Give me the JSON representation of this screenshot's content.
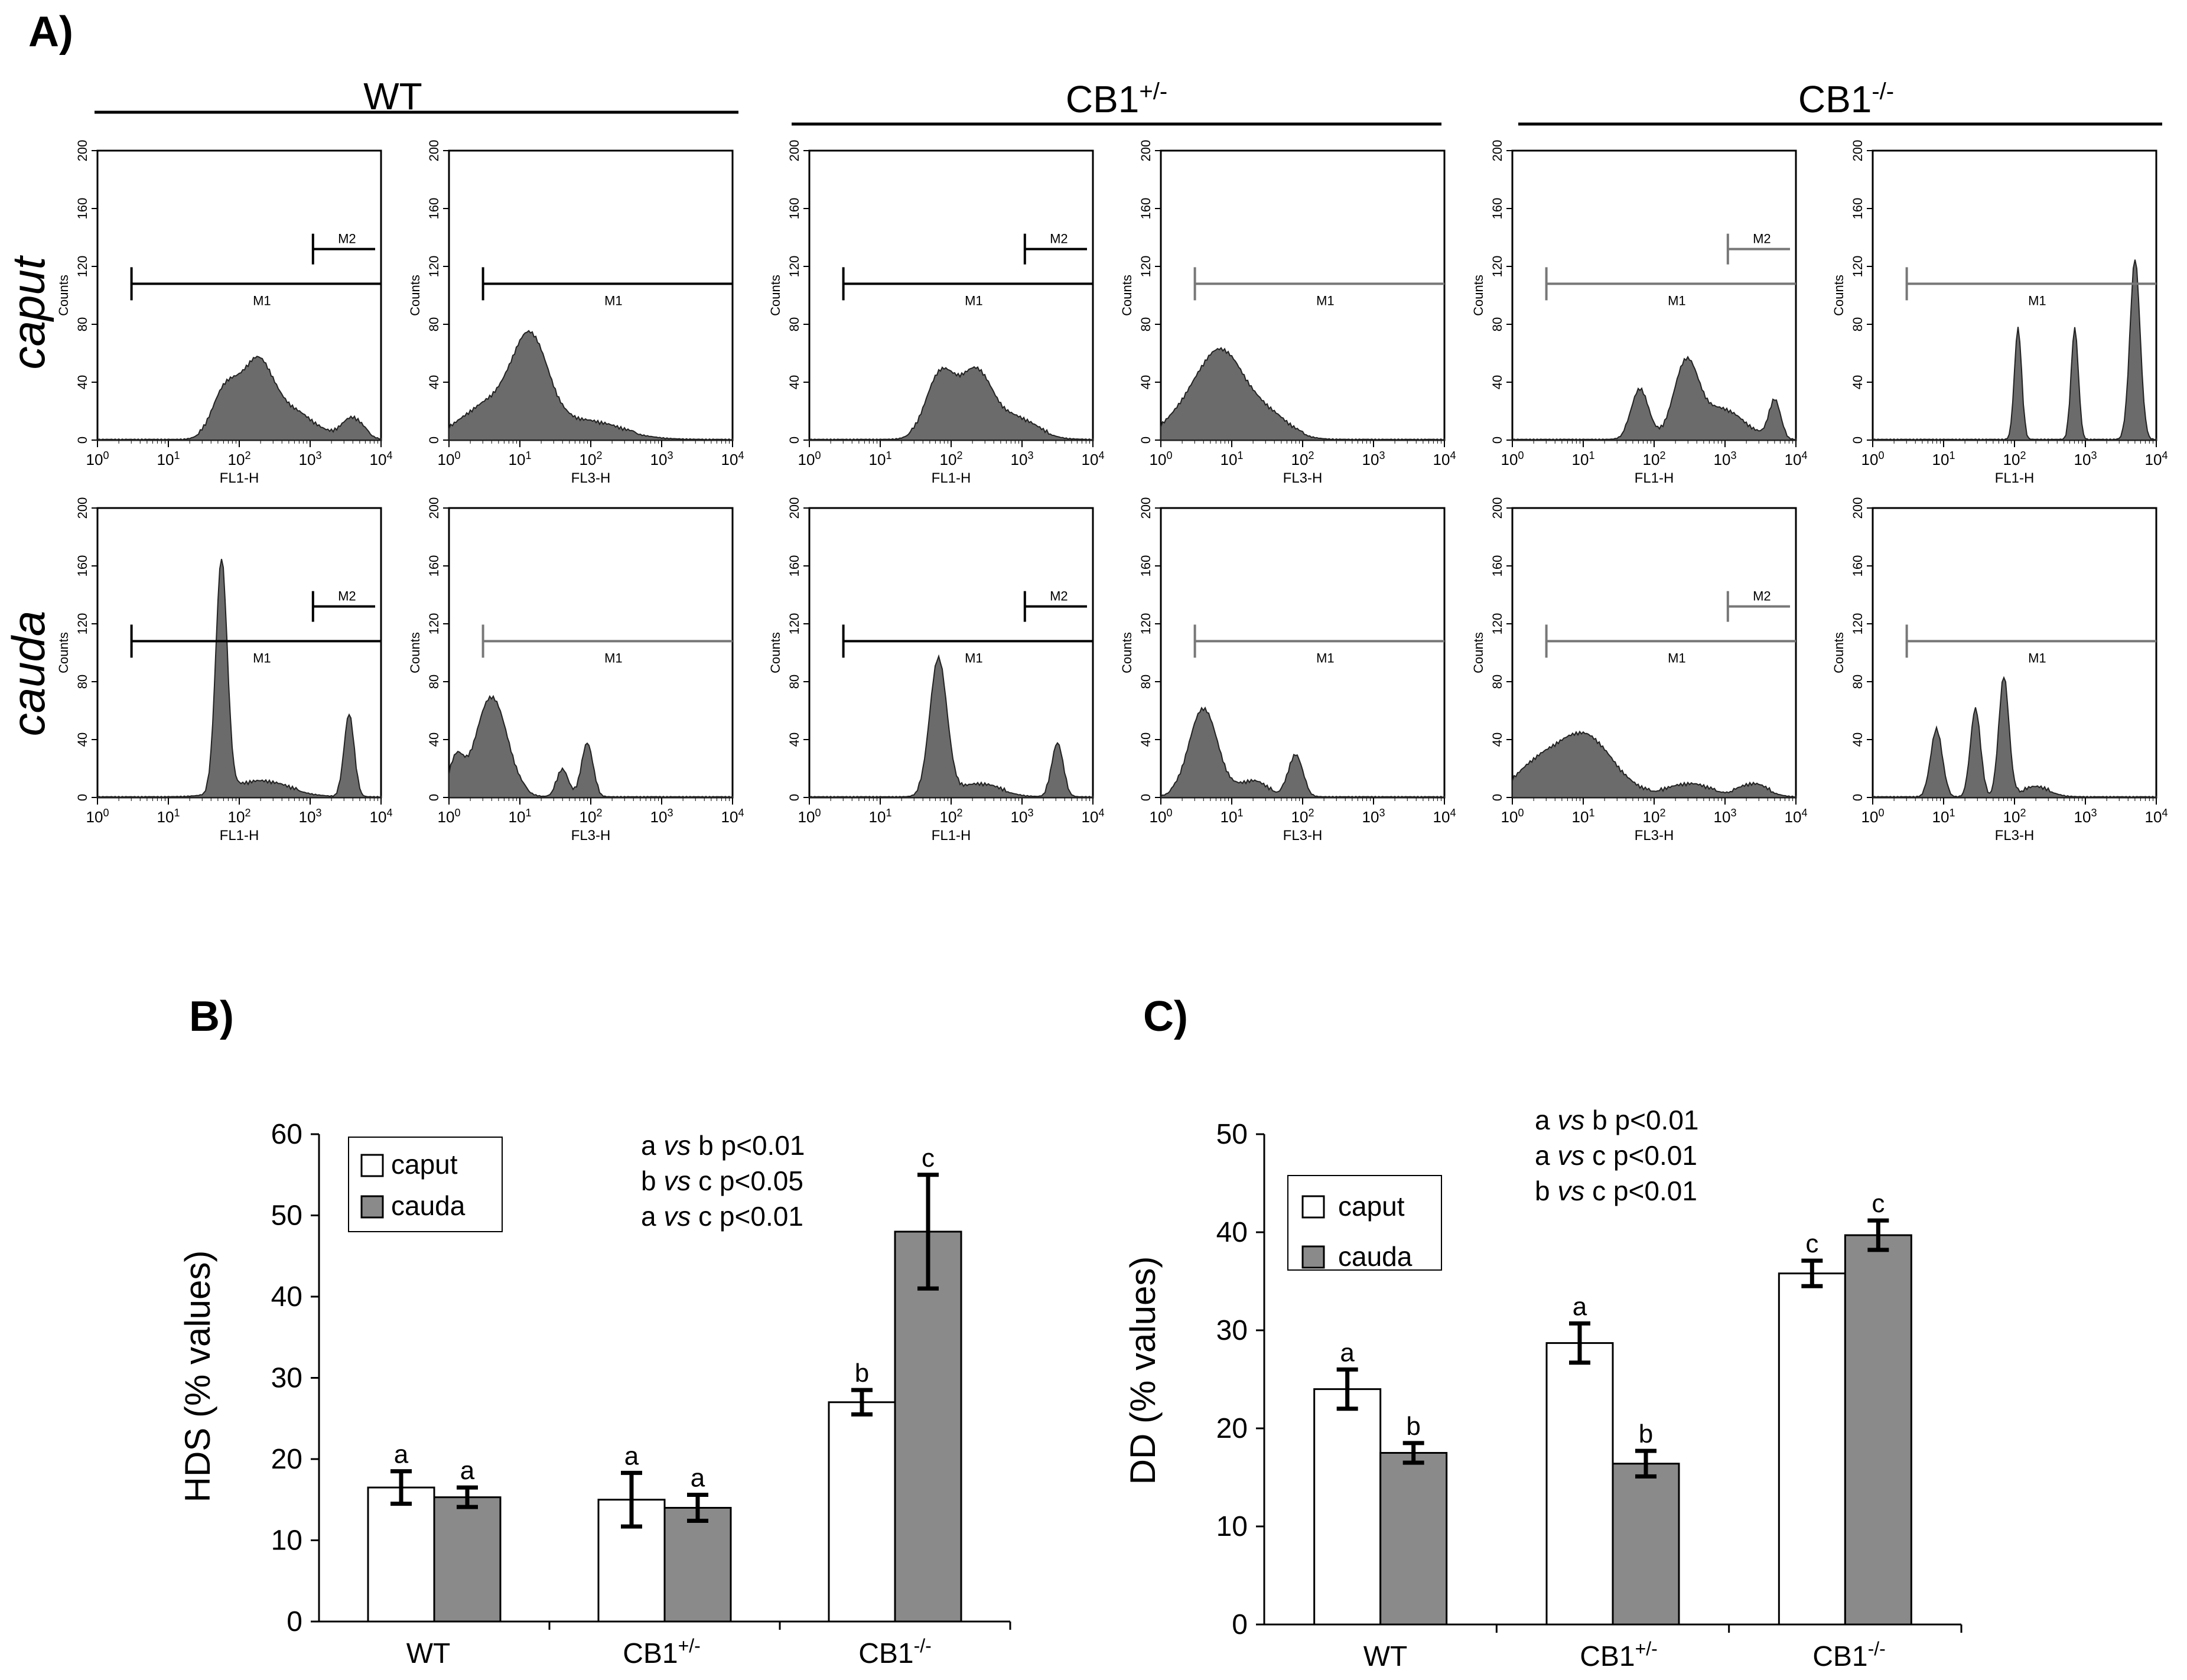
{
  "panel_labels": {
    "a": "A)",
    "b": "B)",
    "c": "C)"
  },
  "colors": {
    "white_bar": "#ffffff",
    "gray_bar": "#8a8a8a",
    "histogram_fill": "#6b6b6b",
    "stroke": "#000000"
  },
  "panel_a": {
    "groups": [
      "WT",
      "CB1",
      "CB1"
    ],
    "group_superscripts": [
      "",
      "+/-",
      "-/-"
    ],
    "row_labels": [
      "caput",
      "cauda"
    ],
    "y_axis_label": "Counts",
    "y_ticks": [
      "0",
      "40",
      "80",
      "120",
      "160",
      "200"
    ],
    "x_tick_exponents": [
      "0",
      "1",
      "2",
      "3",
      "4"
    ],
    "x_tick_base": "10",
    "histograms": [
      {
        "row": 0,
        "col": 0,
        "xlabel": "FL1-H",
        "ylabel": "Counts",
        "markers": [
          "M1",
          "M2"
        ],
        "marker_color": "black",
        "peaks": [
          [
            1.8,
            0.16,
            0.18
          ],
          [
            2.25,
            0.25,
            0.22
          ],
          [
            2.75,
            0.09,
            0.3
          ],
          [
            3.6,
            0.07,
            0.15
          ]
        ]
      },
      {
        "row": 0,
        "col": 1,
        "xlabel": "FL3-H",
        "ylabel": "Counts",
        "markers": [
          "M1"
        ],
        "marker_color": "black",
        "peaks": [
          [
            0.6,
            0.12,
            0.4
          ],
          [
            1.15,
            0.3,
            0.25
          ],
          [
            1.9,
            0.06,
            0.5
          ]
        ]
      },
      {
        "row": 0,
        "col": 2,
        "xlabel": "FL1-H",
        "ylabel": "Counts",
        "markers": [
          "M1",
          "M2"
        ],
        "marker_color": "black",
        "peaks": [
          [
            1.85,
            0.22,
            0.2
          ],
          [
            2.35,
            0.22,
            0.22
          ],
          [
            2.9,
            0.07,
            0.3
          ]
        ]
      },
      {
        "row": 0,
        "col": 3,
        "xlabel": "FL3-H",
        "ylabel": "Counts",
        "markers": [
          "M1"
        ],
        "marker_color": "gray",
        "peaks": [
          [
            0.5,
            0.12,
            0.35
          ],
          [
            0.9,
            0.23,
            0.3
          ],
          [
            1.5,
            0.08,
            0.3
          ]
        ]
      },
      {
        "row": 0,
        "col": 4,
        "xlabel": "FL1-H",
        "ylabel": "Counts",
        "markers": [
          "M1",
          "M2"
        ],
        "marker_color": "gray",
        "peaks": [
          [
            1.8,
            0.17,
            0.12
          ],
          [
            2.45,
            0.25,
            0.17
          ],
          [
            2.95,
            0.1,
            0.3
          ],
          [
            3.7,
            0.13,
            0.08
          ]
        ]
      },
      {
        "row": 0,
        "col": 5,
        "xlabel": "FL1-H",
        "ylabel": "Counts",
        "markers": [
          "M1"
        ],
        "marker_color": "gray",
        "peaks": [
          [
            2.05,
            0.38,
            0.05
          ],
          [
            2.85,
            0.38,
            0.05
          ],
          [
            3.7,
            0.62,
            0.07
          ]
        ]
      },
      {
        "row": 1,
        "col": 0,
        "xlabel": "FL1-H",
        "ylabel": "Counts",
        "markers": [
          "M1",
          "M2"
        ],
        "marker_color": "black",
        "peaks": [
          [
            1.75,
            0.8,
            0.08
          ],
          [
            2.3,
            0.05,
            0.4
          ],
          [
            3.55,
            0.28,
            0.07
          ]
        ]
      },
      {
        "row": 1,
        "col": 1,
        "xlabel": "FL3-H",
        "ylabel": "Counts",
        "markers": [
          "M1"
        ],
        "marker_color": "gray",
        "peaks": [
          [
            0.1,
            0.12,
            0.1
          ],
          [
            0.6,
            0.34,
            0.22
          ],
          [
            1.6,
            0.09,
            0.08
          ],
          [
            1.95,
            0.18,
            0.08
          ]
        ]
      },
      {
        "row": 1,
        "col": 2,
        "xlabel": "FL1-H",
        "ylabel": "Counts",
        "markers": [
          "M1",
          "M2"
        ],
        "marker_color": "black",
        "peaks": [
          [
            1.82,
            0.47,
            0.12
          ],
          [
            2.4,
            0.04,
            0.3
          ],
          [
            3.5,
            0.18,
            0.08
          ]
        ]
      },
      {
        "row": 1,
        "col": 3,
        "xlabel": "FL3-H",
        "ylabel": "Counts",
        "markers": [
          "M1"
        ],
        "marker_color": "gray",
        "peaks": [
          [
            0.6,
            0.3,
            0.2
          ],
          [
            1.3,
            0.05,
            0.2
          ],
          [
            1.9,
            0.14,
            0.1
          ]
        ]
      },
      {
        "row": 1,
        "col": 4,
        "xlabel": "FL3-H",
        "ylabel": "Counts",
        "markers": [
          "M1",
          "M2"
        ],
        "marker_color": "gray",
        "peaks": [
          [
            0.3,
            0.08,
            0.3
          ],
          [
            1.0,
            0.21,
            0.4
          ],
          [
            2.5,
            0.04,
            0.3
          ],
          [
            3.4,
            0.04,
            0.2
          ]
        ]
      },
      {
        "row": 1,
        "col": 5,
        "xlabel": "FL3-H",
        "ylabel": "Counts",
        "markers": [
          "M1"
        ],
        "marker_color": "gray",
        "peaks": [
          [
            0.9,
            0.23,
            0.08
          ],
          [
            1.45,
            0.3,
            0.07
          ],
          [
            1.85,
            0.41,
            0.07
          ],
          [
            2.3,
            0.03,
            0.2
          ]
        ]
      }
    ]
  },
  "chart_data": [
    {
      "type": "bar",
      "panel": "B)",
      "categories": [
        "WT",
        "CB1",
        "CB1"
      ],
      "category_superscripts": [
        "",
        "+/-",
        "-/-"
      ],
      "ylabel": "HDS (% values)",
      "ylim": [
        0,
        60
      ],
      "yticks": [
        0,
        10,
        20,
        30,
        40,
        50,
        60
      ],
      "legend_position": "top-left",
      "series": [
        {
          "name": "caput",
          "color": "#ffffff",
          "values": [
            16.5,
            15,
            27
          ],
          "errors": [
            2,
            3.3,
            1.5
          ],
          "letters": [
            "a",
            "a",
            "b"
          ]
        },
        {
          "name": "cauda",
          "color": "#8a8a8a",
          "values": [
            15.3,
            14,
            48
          ],
          "errors": [
            1.2,
            1.6,
            7
          ],
          "letters": [
            "a",
            "a",
            "c"
          ]
        }
      ],
      "annotations": [
        {
          "pre": "a ",
          "vs": "vs",
          "post": " b p<0.01"
        },
        {
          "pre": "b ",
          "vs": "vs",
          "post": " c p<0.05"
        },
        {
          "pre": "a ",
          "vs": "vs",
          "post": " c p<0.01"
        }
      ]
    },
    {
      "type": "bar",
      "panel": "C)",
      "categories": [
        "WT",
        "CB1",
        "CB1"
      ],
      "category_superscripts": [
        "",
        "+/-",
        "-/-"
      ],
      "ylabel": "DD (% values)",
      "ylim": [
        0,
        50
      ],
      "yticks": [
        0,
        10,
        20,
        30,
        40,
        50
      ],
      "legend_position": "top-left",
      "series": [
        {
          "name": "caput",
          "color": "#ffffff",
          "values": [
            24,
            28.7,
            35.8
          ],
          "errors": [
            2,
            2,
            1.3
          ],
          "letters": [
            "a",
            "a",
            "c"
          ]
        },
        {
          "name": "cauda",
          "color": "#8a8a8a",
          "values": [
            17.5,
            16.4,
            39.7
          ],
          "errors": [
            1,
            1.3,
            1.5
          ],
          "letters": [
            "b",
            "b",
            "c"
          ]
        }
      ],
      "annotations": [
        {
          "pre": "a ",
          "vs": "vs",
          "post": " b p<0.01"
        },
        {
          "pre": "a ",
          "vs": "vs",
          "post": " c p<0.01"
        },
        {
          "pre": "b ",
          "vs": "vs",
          "post": " c p<0.01"
        }
      ]
    }
  ]
}
